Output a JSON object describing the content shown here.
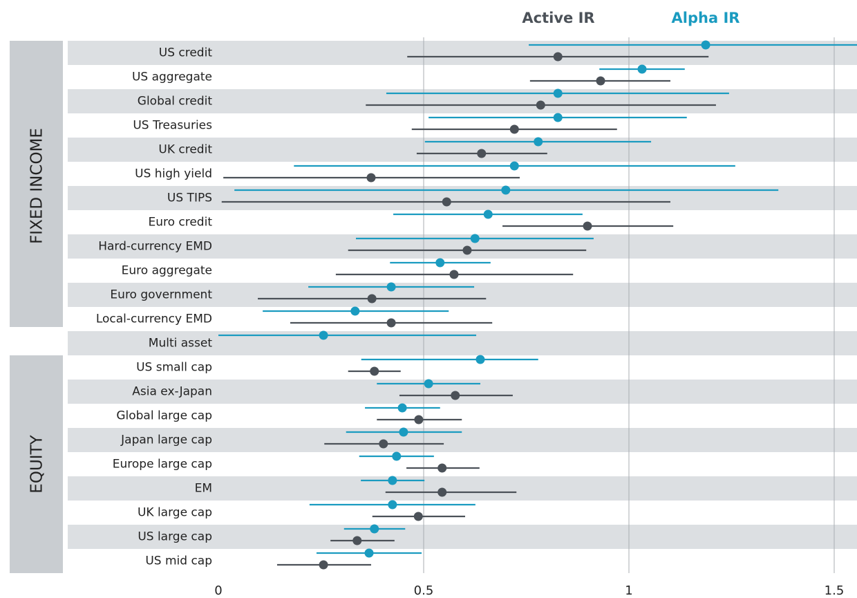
{
  "chart_data": {
    "type": "dot_range",
    "groups": [
      {
        "label": "FIXED INCOME",
        "categories": [
          "US credit",
          "US aggregate",
          "Global credit",
          "US Treasuries",
          "UK credit",
          "US high yield",
          "US TIPS",
          "Euro credit",
          "Hard-currency EMD",
          "Euro aggregate",
          "Euro government",
          "Local-currency EMD"
        ]
      },
      {
        "categories": [
          "Multi asset"
        ]
      },
      {
        "label": "EQUITY",
        "categories": [
          "US small cap",
          "Asia ex-Japan",
          "Global large cap",
          "Japan large cap",
          "Europe large cap",
          "EM",
          "UK large cap",
          "US large cap",
          "US mid cap"
        ]
      }
    ],
    "series": [
      {
        "name": "Active IR",
        "color": "#4b5158",
        "values": [
          0.827,
          0.931,
          0.785,
          0.721,
          0.641,
          0.372,
          0.556,
          0.899,
          0.606,
          0.574,
          0.374,
          0.421,
          null,
          0.38,
          0.577,
          0.488,
          0.402,
          0.545,
          0.545,
          0.487,
          0.338,
          0.256
        ],
        "low": [
          0.46,
          0.759,
          0.359,
          0.471,
          0.483,
          0.012,
          0.008,
          0.692,
          0.316,
          0.286,
          0.096,
          0.175,
          null,
          0.316,
          0.441,
          0.386,
          0.258,
          0.458,
          0.407,
          0.375,
          0.273,
          0.143
        ],
        "high": [
          1.194,
          1.101,
          1.212,
          0.971,
          0.801,
          0.734,
          1.101,
          1.108,
          0.896,
          0.864,
          0.652,
          0.667,
          null,
          0.444,
          0.717,
          0.593,
          0.549,
          0.636,
          0.726,
          0.601,
          0.429,
          0.372
        ]
      },
      {
        "name": "Alpha IR",
        "color": "#1a9bc0",
        "values": [
          1.187,
          1.032,
          0.827,
          0.827,
          0.779,
          0.721,
          0.7,
          0.657,
          0.625,
          0.54,
          0.421,
          0.333,
          0.256,
          0.638,
          0.512,
          0.448,
          0.451,
          0.434,
          0.424,
          0.424,
          0.38,
          0.367
        ],
        "low": [
          0.756,
          0.928,
          0.409,
          0.512,
          0.503,
          0.184,
          0.039,
          0.426,
          0.335,
          0.418,
          0.219,
          0.108,
          0,
          0.348,
          0.386,
          0.357,
          0.311,
          0.343,
          0.347,
          0.222,
          0.306,
          0.239
        ],
        "high": [
          1.6,
          1.136,
          1.244,
          1.141,
          1.054,
          1.259,
          1.364,
          0.887,
          0.914,
          0.663,
          0.623,
          0.561,
          0.628,
          0.779,
          0.638,
          0.54,
          0.593,
          0.525,
          0.502,
          0.626,
          0.455,
          0.495
        ]
      }
    ],
    "xlim": [
      0,
      1.556
    ],
    "xticks": [
      0,
      0.5,
      1,
      1.5
    ],
    "grid": true
  }
}
